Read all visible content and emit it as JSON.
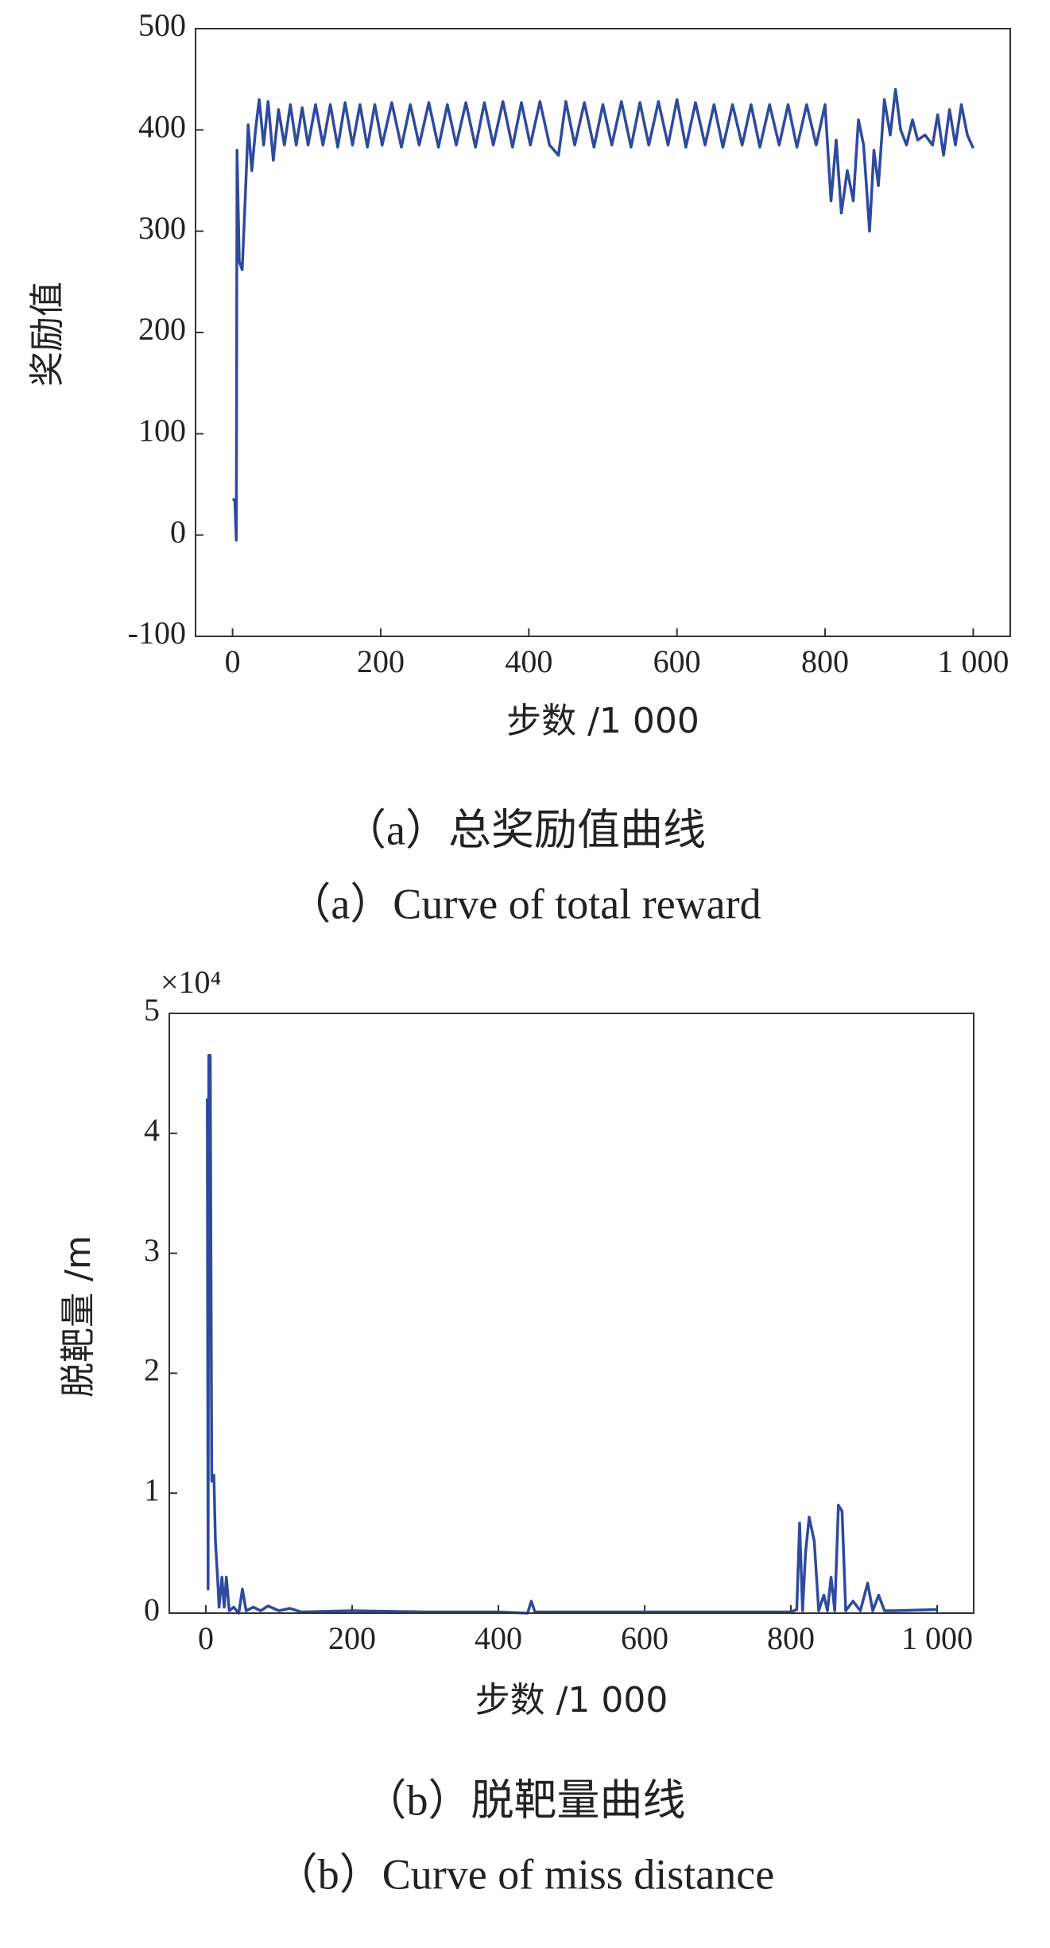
{
  "chart_data": [
    {
      "type": "line",
      "y_label": "奖励值",
      "x_label": "步数 /1 000",
      "caption": [
        "（a）总奖励值曲线",
        "（a）Curve of total reward"
      ],
      "xlim": [
        -50,
        1050
      ],
      "ylim": [
        -100,
        500
      ],
      "xticks": [
        0,
        200,
        400,
        600,
        800,
        {
          "value": 1000,
          "label": "1 000"
        }
      ],
      "yticks": [
        -100,
        0,
        100,
        200,
        300,
        400,
        500
      ],
      "series": [
        {
          "color": "#2e4a9e",
          "x": [
            0,
            3,
            5,
            6,
            9,
            13,
            17,
            21,
            26,
            31,
            36,
            42,
            48,
            55,
            62,
            70,
            78,
            86,
            94,
            102,
            112,
            122,
            132,
            142,
            152,
            162,
            172,
            182,
            192,
            202,
            215,
            228,
            240,
            252,
            265,
            278,
            290,
            302,
            315,
            328,
            340,
            352,
            365,
            378,
            390,
            402,
            415,
            428,
            440,
            450,
            462,
            475,
            488,
            500,
            512,
            525,
            538,
            550,
            562,
            575,
            588,
            600,
            612,
            625,
            638,
            650,
            662,
            675,
            688,
            700,
            712,
            725,
            738,
            750,
            762,
            775,
            788,
            800,
            808,
            815,
            822,
            830,
            838,
            845,
            852,
            860,
            866,
            872,
            880,
            888,
            895,
            902,
            910,
            918,
            925,
            935,
            945,
            952,
            960,
            968,
            976,
            984,
            992,
            1000
          ],
          "values": [
            35,
            35,
            -5,
            380,
            270,
            262,
            330,
            405,
            360,
            400,
            430,
            385,
            428,
            370,
            420,
            385,
            425,
            385,
            422,
            385,
            425,
            385,
            425,
            383,
            427,
            385,
            425,
            383,
            425,
            385,
            427,
            383,
            425,
            385,
            427,
            383,
            425,
            385,
            427,
            383,
            427,
            385,
            428,
            383,
            427,
            385,
            428,
            385,
            375,
            428,
            385,
            427,
            383,
            425,
            385,
            428,
            383,
            427,
            385,
            428,
            385,
            430,
            383,
            427,
            385,
            425,
            383,
            425,
            385,
            425,
            383,
            425,
            385,
            425,
            383,
            425,
            385,
            425,
            330,
            390,
            318,
            360,
            330,
            410,
            385,
            300,
            380,
            345,
            430,
            395,
            440,
            400,
            385,
            410,
            390,
            395,
            385,
            415,
            375,
            420,
            385,
            425,
            395,
            382
          ]
        }
      ]
    },
    {
      "type": "line",
      "y_label": "脱靶量 /m",
      "x_label": "步数 /1 000",
      "y_scale_label": "×10⁴",
      "caption": [
        "（b）脱靶量曲线",
        "（b）Curve of miss distance"
      ],
      "xlim": [
        -50,
        1050
      ],
      "ylim": [
        0,
        5
      ],
      "xticks": [
        0,
        200,
        400,
        600,
        800,
        {
          "value": 1000,
          "label": "1 000"
        }
      ],
      "yticks": [
        0,
        1,
        2,
        3,
        4,
        5
      ],
      "series": [
        {
          "color": "#2e4a9e",
          "x": [
            0,
            2,
            3,
            4,
            6,
            8,
            11,
            13,
            16,
            18,
            22,
            25,
            28,
            32,
            38,
            45,
            50,
            55,
            65,
            75,
            85,
            100,
            115,
            130,
            200,
            300,
            400,
            440,
            445,
            450,
            500,
            600,
            700,
            800,
            808,
            812,
            816,
            820,
            825,
            832,
            838,
            845,
            850,
            855,
            860,
            865,
            870,
            875,
            885,
            895,
            905,
            912,
            920,
            928,
            940,
            1000
          ],
          "values": [
            4.28,
            4.28,
            0.2,
            4.65,
            4.65,
            1.1,
            1.15,
            0.6,
            0.3,
            0.05,
            0.3,
            0.05,
            0.3,
            0.02,
            0.05,
            0.0,
            0.2,
            0.02,
            0.05,
            0.02,
            0.06,
            0.02,
            0.04,
            0.01,
            0.02,
            0.01,
            0.01,
            0.0,
            0.1,
            0.01,
            0.01,
            0.01,
            0.01,
            0.01,
            0.03,
            0.75,
            0.02,
            0.5,
            0.8,
            0.6,
            0.02,
            0.15,
            0.02,
            0.3,
            0.02,
            0.9,
            0.85,
            0.02,
            0.1,
            0.02,
            0.25,
            0.02,
            0.15,
            0.02,
            0.02,
            0.03
          ]
        }
      ]
    }
  ]
}
